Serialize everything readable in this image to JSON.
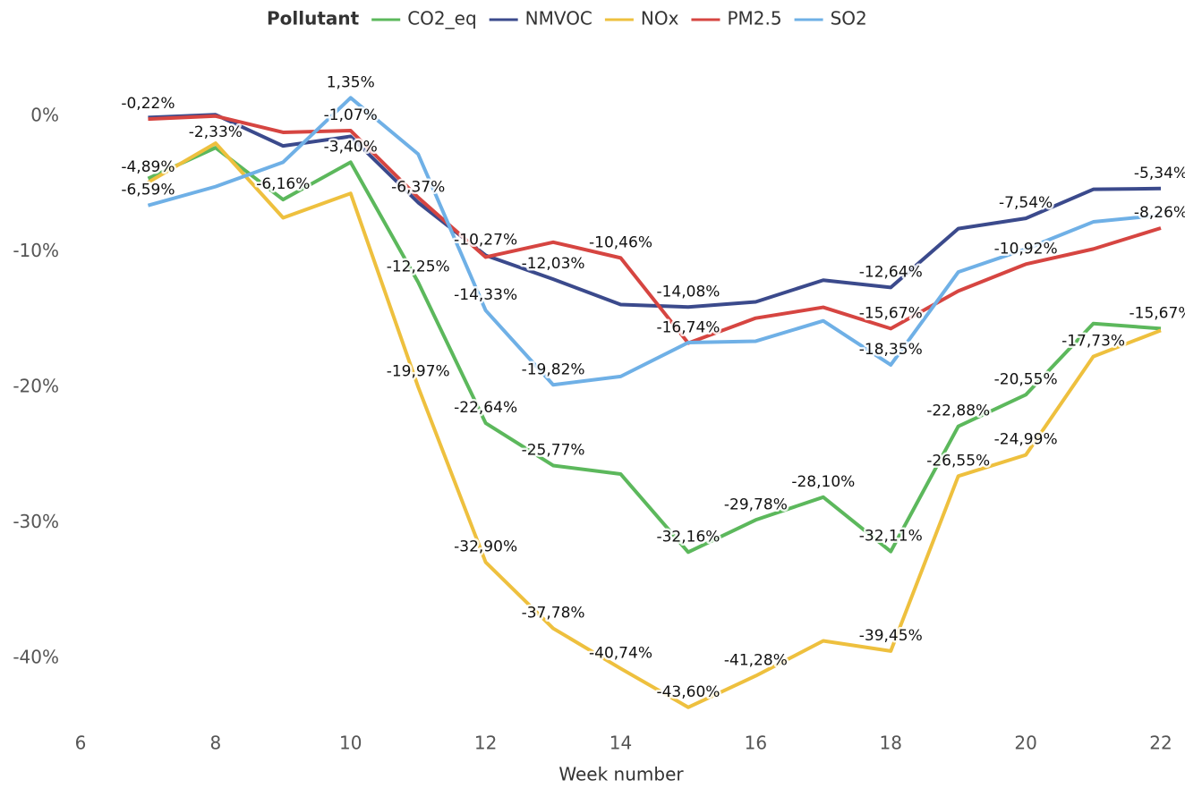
{
  "chart_data": {
    "type": "line",
    "legend_title": "Pollutant",
    "legend": "top",
    "x_label": "Week number",
    "x": [
      7,
      8,
      9,
      10,
      11,
      12,
      13,
      14,
      15,
      16,
      17,
      18,
      19,
      20,
      21,
      22
    ],
    "xlim": [
      6,
      22
    ],
    "xticks": [
      6,
      8,
      10,
      12,
      14,
      16,
      18,
      20,
      22
    ],
    "ylim": [
      -45,
      5
    ],
    "yticks": [
      {
        "value": 0,
        "label": "0%"
      },
      {
        "value": -10,
        "label": "-10%"
      },
      {
        "value": -20,
        "label": "-20%"
      },
      {
        "value": -30,
        "label": "-30%"
      },
      {
        "value": -40,
        "label": "-40%"
      }
    ],
    "grid": false,
    "series": [
      {
        "name": "CO2_eq",
        "color": "#5cb85c",
        "values": [
          -4.6,
          -2.33,
          -6.16,
          -3.4,
          -12.25,
          -22.64,
          -25.77,
          -26.4,
          -32.16,
          -29.78,
          -28.1,
          -32.11,
          -22.88,
          -20.55,
          -15.3,
          -15.67
        ],
        "value_labels": [
          null,
          "-2,33%",
          "-6,16%",
          "-3,40%",
          "-12,25%",
          "-22,64%",
          "-25,77%",
          null,
          "-32,16%",
          "-29,78%",
          "-28,10%",
          "-32,11%",
          "-22,88%",
          "-20,55%",
          null,
          "-15,67%"
        ]
      },
      {
        "name": "NMVOC",
        "color": "#3b4a8c",
        "values": [
          -0.1,
          0.1,
          -2.2,
          -1.5,
          -6.37,
          -10.27,
          -12.03,
          -13.9,
          -14.08,
          -13.7,
          -12.1,
          -12.64,
          -8.3,
          -7.54,
          -5.4,
          -5.34
        ],
        "value_labels": [
          null,
          null,
          null,
          null,
          "-6,37%",
          "-10,27%",
          "-12,03%",
          null,
          "-14,08%",
          null,
          null,
          "-12,64%",
          null,
          "-7,54%",
          null,
          "-5,34%"
        ]
      },
      {
        "name": "NOx",
        "color": "#eec03e",
        "values": [
          -4.89,
          -2.0,
          -7.5,
          -5.7,
          -19.97,
          -32.9,
          -37.78,
          -40.74,
          -43.6,
          -41.28,
          -38.7,
          -39.45,
          -26.55,
          -24.99,
          -17.73,
          -15.8
        ],
        "value_labels": [
          "-4,89%",
          null,
          null,
          null,
          "-19,97%",
          "-32,90%",
          "-37,78%",
          "-40,74%",
          "-43,60%",
          "-41,28%",
          null,
          "-39,45%",
          "-26,55%",
          "-24,99%",
          "-17,73%",
          null
        ]
      },
      {
        "name": "PM2.5",
        "color": "#d64541",
        "values": [
          -0.22,
          0.0,
          -1.2,
          -1.07,
          -6.0,
          -10.4,
          -9.3,
          -10.46,
          -16.74,
          -14.9,
          -14.1,
          -15.67,
          -12.9,
          -10.92,
          -9.8,
          -8.26
        ],
        "value_labels": [
          "-0,22%",
          null,
          null,
          "-1,07%",
          null,
          null,
          null,
          "-10,46%",
          "-16,74%",
          null,
          null,
          "-15,67%",
          null,
          "-10,92%",
          null,
          "-8,26%"
        ]
      },
      {
        "name": "SO2",
        "color": "#6fb0e6",
        "values": [
          -6.59,
          -5.2,
          -3.4,
          1.35,
          -2.8,
          -14.33,
          -19.82,
          -19.2,
          -16.7,
          -16.6,
          -15.1,
          -18.35,
          -11.5,
          -9.8,
          -7.8,
          -7.3
        ],
        "value_labels": [
          "-6,59%",
          null,
          null,
          "1,35%",
          null,
          "-14,33%",
          "-19,82%",
          null,
          null,
          null,
          null,
          "-18,35%",
          null,
          null,
          null,
          null
        ]
      }
    ]
  }
}
